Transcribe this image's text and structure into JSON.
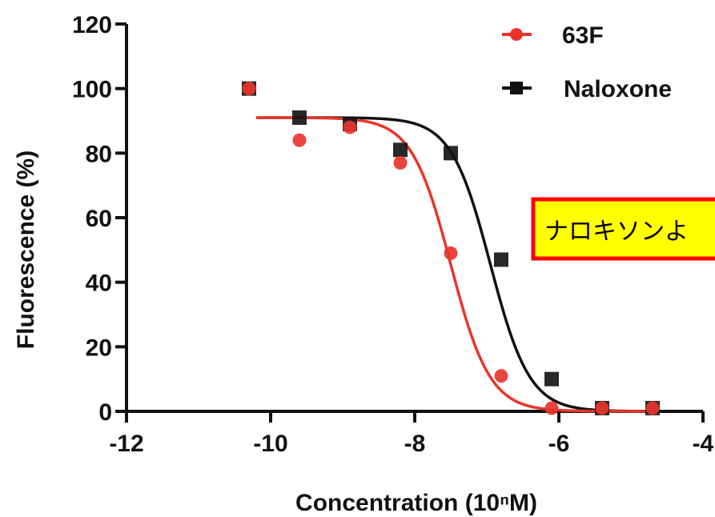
{
  "colors": {
    "series_63F": "#e8352b",
    "series_naloxone": "#111111",
    "callout_fill": "#ffff00",
    "callout_border": "#ff0000"
  },
  "callout": {
    "text": "ナロキソンよ"
  },
  "chart_data": {
    "type": "scatter",
    "title": "",
    "xlabel": "Concentration (10ⁿM)",
    "ylabel": "Fluorescence (%)",
    "xlim": [
      -12,
      -4
    ],
    "ylim": [
      0,
      120
    ],
    "xticks": [
      "-12",
      "-10",
      "-8",
      "-6",
      "-4"
    ],
    "yticks": [
      "0",
      "20",
      "40",
      "60",
      "80",
      "100",
      "120"
    ],
    "legend_position": "top-right",
    "series": [
      {
        "name": "63F",
        "marker": "circle",
        "color": "#e8352b",
        "x": [
          -10.3,
          -9.6,
          -8.9,
          -8.2,
          -7.5,
          -6.8,
          -6.1,
          -5.4,
          -4.7
        ],
        "y": [
          100,
          84,
          88,
          77,
          49,
          11,
          1,
          1,
          1
        ],
        "fit": {
          "model": "sigmoid",
          "top": 91,
          "bottom": 0,
          "log_ic50": -7.5,
          "hill": 1.6
        }
      },
      {
        "name": "Naloxone",
        "marker": "square",
        "color": "#111111",
        "x": [
          -10.3,
          -9.6,
          -8.9,
          -8.2,
          -7.5,
          -6.8,
          -6.1,
          -5.4,
          -4.7
        ],
        "y": [
          100,
          91,
          89,
          81,
          80,
          47,
          10,
          1,
          1
        ],
        "fit": {
          "model": "sigmoid",
          "top": 91,
          "bottom": 0,
          "log_ic50": -6.95,
          "hill": 1.6
        }
      }
    ]
  }
}
